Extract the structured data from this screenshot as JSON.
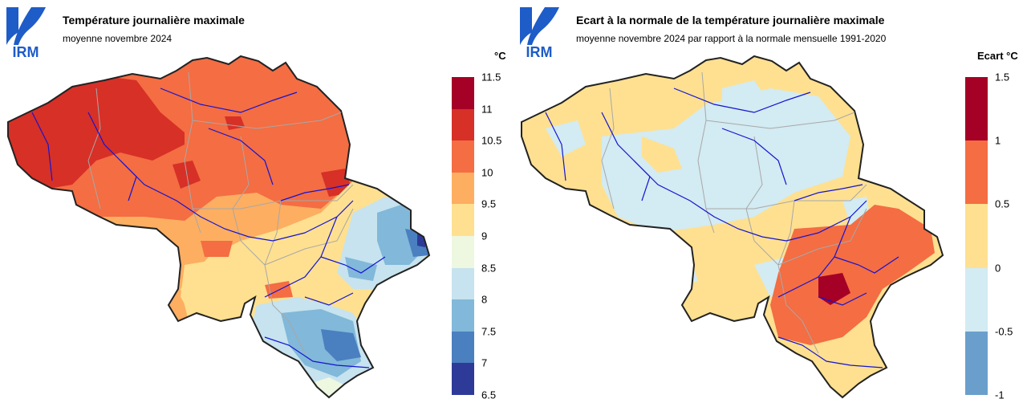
{
  "left": {
    "title": "Température journalière maximale",
    "subtitle": "moyenne novembre 2024",
    "unit": "°C",
    "logo_text": "IRM",
    "legend": {
      "ticks": [
        "11.5",
        "11",
        "10.5",
        "10",
        "9.5",
        "9",
        "8.5",
        "8",
        "7.5",
        "7",
        "6.5"
      ],
      "colors": [
        "#a50026",
        "#d73027",
        "#f46d43",
        "#fdae61",
        "#fee090",
        "#eef7e0",
        "#c6e3ef",
        "#82b8d9",
        "#4a7fc0",
        "#2e3a98"
      ]
    }
  },
  "right": {
    "title": "Ecart à la normale de la température journalière maximale",
    "subtitle": "moyenne novembre 2024 par rapport à la normale mensuelle 1991-2020",
    "unit": "Ecart °C",
    "logo_text": "IRM",
    "legend": {
      "ticks": [
        "1.5",
        "1",
        "0.5",
        "0",
        "-0.5",
        "-1"
      ],
      "colors": [
        "#a50026",
        "#f46d43",
        "#fee090",
        "#d3ebf2",
        "#6a9fcc"
      ]
    }
  }
}
